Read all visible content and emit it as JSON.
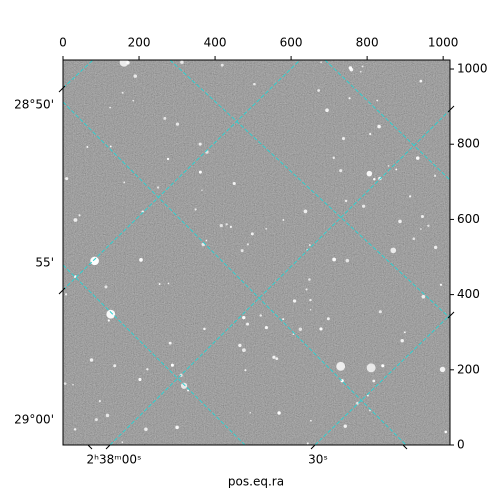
{
  "chart_data": {
    "type": "image",
    "x_label": "pos.eq.ra",
    "xlim": [
      0,
      1018
    ],
    "xticks": [
      0,
      200,
      400,
      600,
      800,
      1000
    ],
    "ylim": [
      0,
      1024
    ],
    "yticks": [
      0,
      200,
      400,
      600,
      800,
      1000
    ],
    "world_y_labels": [
      "28°50'",
      "55'",
      "29°00'"
    ],
    "world_x_labels": [
      "2ʰ38ᵐ00ˢ",
      "30ˢ"
    ]
  }
}
